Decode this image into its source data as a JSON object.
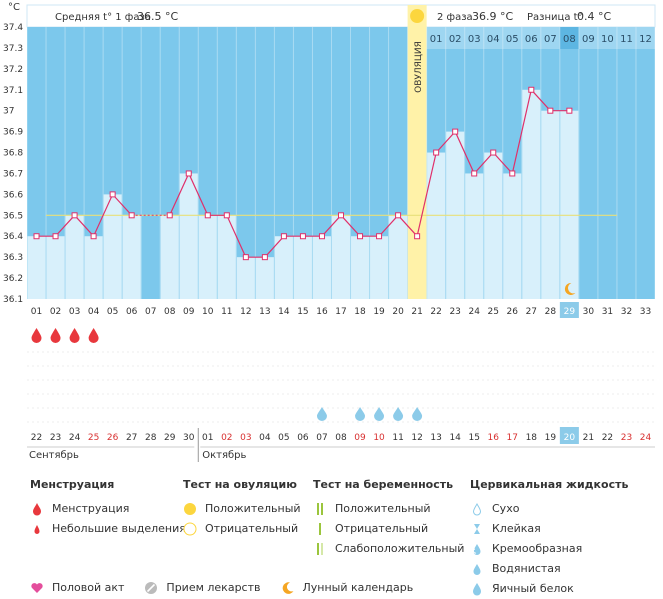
{
  "units": "°C",
  "header": {
    "phase1_label": "Средняя t° 1 фаза",
    "phase1_value": "36.5 °C",
    "phase2_label": "2 фаза",
    "phase2_value": "36.9 °C",
    "diff_label": "Разница t°",
    "diff_value": "0.4 °C",
    "ovulation_label": "ОВУЛЯЦИЯ"
  },
  "phase2_day_labels": [
    "01",
    "02",
    "03",
    "04",
    "05",
    "06",
    "07",
    "08",
    "09",
    "10",
    "11",
    "12"
  ],
  "chart_data": {
    "type": "line",
    "title": "",
    "ylabel": "°C",
    "ylim": [
      36.1,
      37.4
    ],
    "y_ticks": [
      "36.1",
      "36.2",
      "36.3",
      "36.4",
      "36.5",
      "36.6",
      "36.7",
      "36.8",
      "36.9",
      "37",
      "37.1",
      "37.2",
      "37.3",
      "37.4"
    ],
    "cycle_days": [
      "01",
      "02",
      "03",
      "04",
      "05",
      "06",
      "07",
      "08",
      "09",
      "10",
      "11",
      "12",
      "13",
      "14",
      "15",
      "16",
      "17",
      "18",
      "19",
      "20",
      "21",
      "22",
      "23",
      "24",
      "25",
      "26",
      "27",
      "28",
      "29",
      "30",
      "31",
      "32",
      "33"
    ],
    "temperatures": [
      36.4,
      36.4,
      36.5,
      36.4,
      36.6,
      36.5,
      null,
      36.5,
      36.7,
      36.5,
      36.5,
      36.3,
      36.3,
      36.4,
      36.4,
      36.4,
      36.5,
      36.4,
      36.4,
      36.5,
      36.4,
      36.8,
      36.9,
      36.7,
      36.8,
      36.7,
      37.1,
      37.0,
      37.0,
      null,
      null,
      null,
      null
    ],
    "coverline": 36.5,
    "ovulation_day": "21",
    "current_day": "29",
    "menstruation_days": [
      "01",
      "02",
      "03",
      "04"
    ],
    "cervical_fluid_days": [
      "16",
      "18",
      "19",
      "20",
      "21"
    ],
    "moon_day": "29"
  },
  "calendar": {
    "dates": [
      "22",
      "23",
      "24",
      "25",
      "26",
      "27",
      "28",
      "29",
      "30",
      "01",
      "02",
      "03",
      "04",
      "05",
      "06",
      "07",
      "08",
      "09",
      "10",
      "11",
      "12",
      "13",
      "14",
      "15",
      "16",
      "17",
      "18",
      "19",
      "20",
      "21",
      "22",
      "23",
      "24"
    ],
    "weekend_dates_idx": [
      3,
      4,
      10,
      11,
      17,
      18,
      24,
      25,
      31,
      32
    ],
    "month1": "Сентябрь",
    "month2": "Октябрь"
  },
  "legend": {
    "menstruation": {
      "title": "Менструация",
      "items": [
        "Менструация",
        "Небольшие выделения"
      ]
    },
    "ovulation_test": {
      "title": "Тест на овуляцию",
      "items": [
        "Положительный",
        "Отрицательный"
      ]
    },
    "pregnancy_test": {
      "title": "Тест на беременность",
      "items": [
        "Положительный",
        "Отрицательный",
        "Слабоположительный"
      ]
    },
    "cervical_fluid": {
      "title": "Цервикальная жидкость",
      "items": [
        "Сухо",
        "Клейкая",
        "Кремообразная",
        "Водянистая",
        "Яичный белок"
      ]
    },
    "bottom": [
      "Половой акт",
      "Прием лекарств",
      "Лунный календарь"
    ]
  },
  "colors": {
    "sky": "#7cc8ec",
    "bar_fill": "#d8f0fb",
    "line": "#e0306a",
    "ovulation": "#fff2a8",
    "sun": "#fcd63e",
    "drop_red": "#e8383d",
    "drop_blue": "#8ccbe9",
    "today": "#8ccbe9"
  }
}
